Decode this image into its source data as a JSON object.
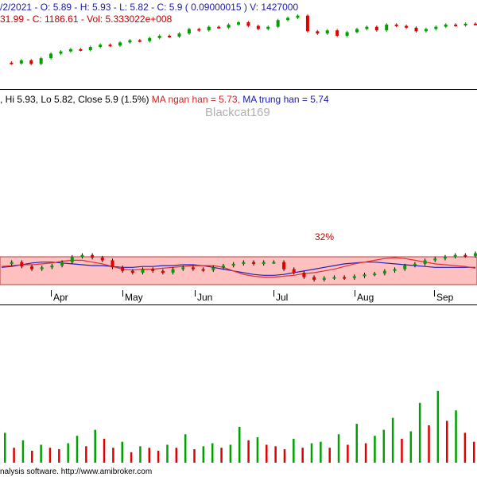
{
  "top_pane": {
    "line1": "/2/2021 - O: 5.89 - H: 5.93 - L: 5.82 - C: 5.9 ( 0.09000015 ) V: 1427000",
    "line2": "31.99 - C: 1186.61 - Vol: 5.333022e+008"
  },
  "mid_pane": {
    "ohlc_text": ", Hi 5.93, Lo 5.82, Close 5.9 (1.5%) ",
    "ma_short": "MA ngan han = 5.73,",
    "ma_long": " MA trung han = 5.74",
    "watermark": "Blackcat169",
    "percent_label": "32%",
    "months": [
      "Apr",
      "May",
      "Jun",
      "Jul",
      "Aug",
      "Sep"
    ]
  },
  "footer": "nalysis software. http://www.amibroker.com",
  "colors": {
    "up": "#00a000",
    "down": "#e00000",
    "band": "#ffc0c0",
    "ma_short": "#e03030",
    "ma_long": "#2020c0"
  },
  "chart_data": [
    {
      "type": "line",
      "name": "index",
      "values": [
        1100,
        1098,
        1105,
        1097,
        1110,
        1120,
        1125,
        1130,
        1128,
        1135,
        1140,
        1138,
        1145,
        1150,
        1148,
        1155,
        1160,
        1158,
        1165,
        1175,
        1172,
        1180,
        1178,
        1185,
        1190,
        1182,
        1175,
        1180,
        1195,
        1200,
        1205,
        1170,
        1165,
        1172,
        1160,
        1168,
        1175,
        1180,
        1172,
        1185,
        1182,
        1178,
        1170,
        1175,
        1180,
        1185,
        1183,
        1187,
        1186.61
      ]
    },
    {
      "type": "line",
      "name": "price",
      "values": [
        5.78,
        5.8,
        5.75,
        5.72,
        5.74,
        5.76,
        5.8,
        5.86,
        5.88,
        5.85,
        5.82,
        5.74,
        5.7,
        5.68,
        5.72,
        5.7,
        5.68,
        5.72,
        5.74,
        5.72,
        5.71,
        5.74,
        5.76,
        5.78,
        5.8,
        5.78,
        5.8,
        5.8,
        5.72,
        5.68,
        5.63,
        5.6,
        5.62,
        5.63,
        5.62,
        5.64,
        5.66,
        5.67,
        5.7,
        5.72,
        5.76,
        5.78,
        5.82,
        5.84,
        5.86,
        5.88,
        5.87,
        5.9
      ],
      "ma_short": [
        5.75,
        5.76,
        5.77,
        5.77,
        5.78,
        5.79,
        5.81,
        5.82,
        5.82,
        5.8,
        5.78,
        5.75,
        5.72,
        5.71,
        5.72,
        5.72,
        5.73,
        5.74,
        5.75,
        5.76,
        5.76,
        5.76,
        5.74,
        5.7,
        5.66,
        5.64,
        5.63,
        5.63,
        5.64,
        5.65,
        5.67,
        5.68,
        5.7,
        5.72,
        5.75,
        5.78,
        5.8,
        5.82,
        5.84,
        5.85,
        5.84,
        5.82,
        5.8,
        5.78,
        5.77,
        5.76,
        5.75,
        5.73
      ],
      "ma_long": [
        5.74,
        5.75,
        5.77,
        5.79,
        5.8,
        5.8,
        5.79,
        5.78,
        5.77,
        5.76,
        5.76,
        5.75,
        5.74,
        5.74,
        5.75,
        5.75,
        5.76,
        5.76,
        5.77,
        5.77,
        5.76,
        5.74,
        5.72,
        5.7,
        5.68,
        5.66,
        5.65,
        5.65,
        5.66,
        5.68,
        5.7,
        5.72,
        5.74,
        5.76,
        5.78,
        5.79,
        5.8,
        5.8,
        5.79,
        5.78,
        5.77,
        5.76,
        5.75,
        5.74,
        5.74,
        5.74,
        5.74,
        5.74
      ]
    },
    {
      "type": "bar",
      "name": "volume",
      "values": [
        2.0,
        1.0,
        1.5,
        0.8,
        1.2,
        1.0,
        0.9,
        1.3,
        1.8,
        1.1,
        2.2,
        1.6,
        1.0,
        1.4,
        0.7,
        1.1,
        1.0,
        0.8,
        1.2,
        1.0,
        1.9,
        0.9,
        1.1,
        1.3,
        1.0,
        1.2,
        2.4,
        1.5,
        1.7,
        1.2,
        1.1,
        0.9,
        1.6,
        1.0,
        1.3,
        1.4,
        1.0,
        1.9,
        1.2,
        2.6,
        1.3,
        1.8,
        2.2,
        3.0,
        1.6,
        2.1,
        4.0,
        2.5,
        4.8,
        2.8,
        3.5,
        2.0,
        1.4
      ]
    }
  ]
}
